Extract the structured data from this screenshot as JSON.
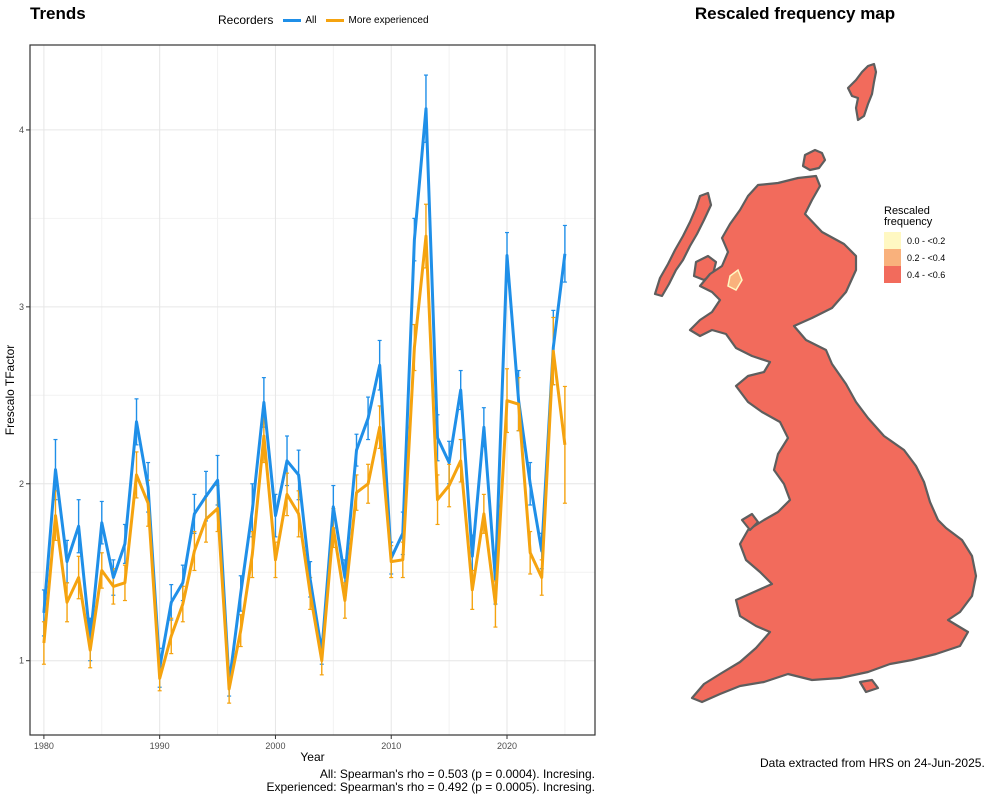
{
  "left_panel": {
    "title": "Trends"
  },
  "right_panel": {
    "title": "Rescaled frequency map"
  },
  "legend": {
    "title": "Recorders",
    "items": [
      {
        "label": "All",
        "color": "#1f8fe8"
      },
      {
        "label": "More experienced",
        "color": "#f5a30f"
      }
    ]
  },
  "stats": {
    "all": "All: Spearman's rho = 0.503 (p = 0.0004). Incresing.",
    "experienced": "Experienced: Spearman's rho = 0.492 (p = 0.0005). Incresing."
  },
  "map_legend": {
    "title_line1": "Rescaled",
    "title_line2": "frequency",
    "items": [
      {
        "label": "0.0 - <0.2",
        "color": "#fff8c2"
      },
      {
        "label": "0.2 - <0.4",
        "color": "#f9b17c"
      },
      {
        "label": "0.4 - <0.6",
        "color": "#f26b5c"
      }
    ]
  },
  "map_note": "Data extracted from HRS on 24-Jun-2025.",
  "chart_data": {
    "type": "line",
    "title": "Trends",
    "xlabel": "Year",
    "ylabel": "Frescalo TFactor",
    "xlim": [
      1978.8,
      2027.6
    ],
    "ylim": [
      0.58,
      4.48
    ],
    "xticks": [
      1980,
      1990,
      2000,
      2010,
      2020
    ],
    "yticks": [
      1,
      2,
      3,
      4
    ],
    "grid": true,
    "legend_position": "top",
    "x": [
      1980,
      1981,
      1982,
      1983,
      1984,
      1985,
      1986,
      1987,
      1988,
      1989,
      1990,
      1991,
      1992,
      1993,
      1994,
      1995,
      1996,
      1997,
      1998,
      1999,
      2000,
      2001,
      2002,
      2003,
      2004,
      2005,
      2006,
      2007,
      2008,
      2009,
      2010,
      2011,
      2012,
      2013,
      2014,
      2015,
      2016,
      2017,
      2018,
      2019,
      2020,
      2021,
      2022,
      2023,
      2024,
      2025
    ],
    "series": [
      {
        "name": "All",
        "color": "#1f8fe8",
        "values": [
          1.27,
          2.08,
          1.56,
          1.76,
          1.12,
          1.78,
          1.47,
          1.66,
          2.35,
          1.98,
          0.96,
          1.33,
          1.44,
          1.83,
          1.93,
          2.02,
          0.87,
          1.38,
          1.85,
          2.46,
          1.82,
          2.13,
          2.05,
          1.46,
          1.05,
          1.87,
          1.47,
          2.19,
          2.37,
          2.67,
          1.58,
          1.72,
          3.38,
          4.12,
          2.26,
          2.12,
          2.53,
          1.59,
          2.32,
          1.46,
          3.29,
          2.47,
          2.0,
          1.62,
          2.77,
          3.3
        ],
        "err": [
          0.13,
          0.17,
          0.12,
          0.15,
          0.12,
          0.12,
          0.1,
          0.11,
          0.13,
          0.14,
          0.11,
          0.1,
          0.1,
          0.11,
          0.14,
          0.14,
          0.07,
          0.1,
          0.15,
          0.14,
          0.12,
          0.14,
          0.14,
          0.1,
          0.07,
          0.12,
          0.1,
          0.09,
          0.12,
          0.14,
          0.09,
          0.12,
          0.12,
          0.19,
          0.13,
          0.12,
          0.11,
          0.12,
          0.11,
          0.14,
          0.13,
          0.17,
          0.12,
          0.1,
          0.21,
          0.16
        ]
      },
      {
        "name": "More experienced",
        "color": "#f5a30f",
        "values": [
          1.1,
          1.82,
          1.33,
          1.47,
          1.06,
          1.51,
          1.42,
          1.44,
          2.05,
          1.89,
          0.9,
          1.14,
          1.32,
          1.62,
          1.8,
          1.86,
          0.84,
          1.17,
          1.6,
          2.27,
          1.57,
          1.94,
          1.83,
          1.38,
          1.0,
          1.75,
          1.34,
          1.95,
          2.0,
          2.32,
          1.56,
          1.57,
          2.77,
          3.4,
          1.91,
          1.99,
          2.13,
          1.4,
          1.83,
          1.32,
          2.47,
          2.45,
          1.61,
          1.47,
          2.75,
          2.22
        ],
        "err": [
          0.12,
          0.14,
          0.11,
          0.12,
          0.1,
          0.1,
          0.1,
          0.1,
          0.13,
          0.13,
          0.07,
          0.1,
          0.1,
          0.11,
          0.13,
          0.13,
          0.08,
          0.09,
          0.13,
          0.15,
          0.1,
          0.12,
          0.13,
          0.09,
          0.08,
          0.11,
          0.1,
          0.1,
          0.11,
          0.12,
          0.09,
          0.1,
          0.13,
          0.18,
          0.14,
          0.12,
          0.12,
          0.11,
          0.11,
          0.13,
          0.18,
          0.15,
          0.12,
          0.1,
          0.19,
          0.33
        ]
      }
    ]
  }
}
